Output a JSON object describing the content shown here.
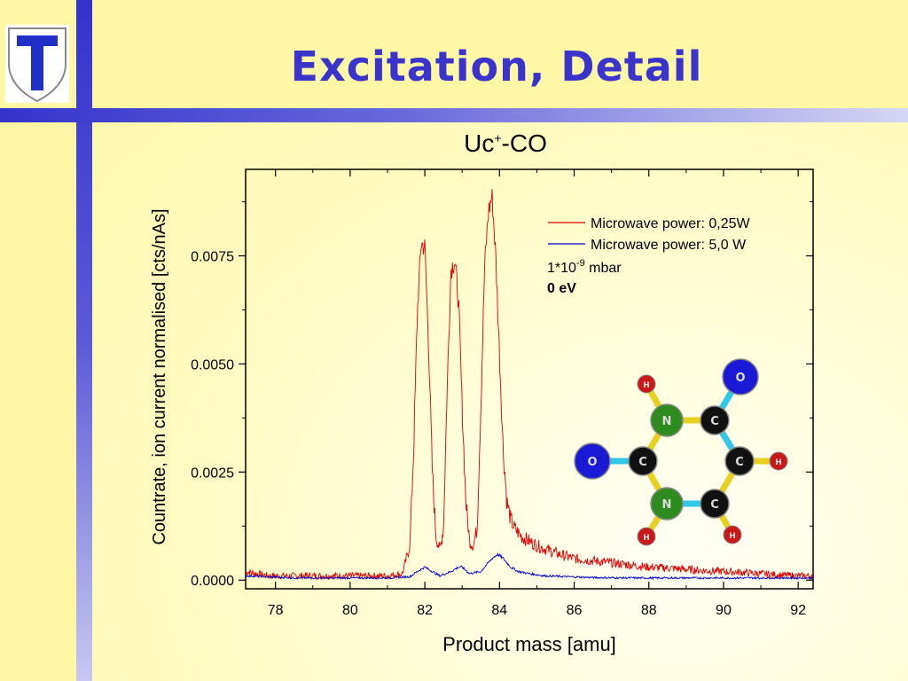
{
  "slide": {
    "title": "Excitation, Detail"
  },
  "chart_data": {
    "type": "line",
    "title": {
      "base": "Uc",
      "sup": "+",
      "rest": "-CO"
    },
    "xlabel": "Product mass [amu]",
    "ylabel": "Countrate, ion current normalised [cts/nAs]",
    "xlim": [
      77.2,
      92.4
    ],
    "ylim": [
      -0.0002,
      0.0095
    ],
    "xticks": [
      78,
      80,
      82,
      84,
      86,
      88,
      90,
      92
    ],
    "yticks": [
      0.0,
      0.0025,
      0.005,
      0.0075
    ],
    "ytick_labels": [
      "0.0000",
      "0.0025",
      "0.0050",
      "0.0075"
    ],
    "grid": false,
    "legend_position": "top-right",
    "series": [
      {
        "name": "Microwave power: 0,25W",
        "color": "#e00000",
        "x": [
          77.2,
          77.8,
          78.5,
          79.5,
          80.5,
          81.0,
          81.4,
          81.6,
          81.7,
          81.8,
          81.9,
          82.0,
          82.1,
          82.2,
          82.3,
          82.4,
          82.5,
          82.6,
          82.7,
          82.8,
          82.9,
          83.0,
          83.1,
          83.2,
          83.3,
          83.4,
          83.5,
          83.6,
          83.7,
          83.8,
          83.9,
          84.0,
          84.1,
          84.2,
          84.3,
          84.4,
          84.6,
          84.8,
          85.0,
          85.3,
          85.6,
          86.0,
          86.5,
          87.0,
          87.5,
          88.0,
          88.5,
          89.0,
          89.5,
          90.0,
          90.5,
          91.0,
          91.5,
          92.0,
          92.4
        ],
        "y": [
          0.0002,
          0.0001,
          0.0001,
          0.0001,
          0.0001,
          0.0001,
          0.00015,
          0.0008,
          0.003,
          0.0062,
          0.0078,
          0.0077,
          0.0055,
          0.0025,
          0.001,
          0.0007,
          0.0012,
          0.0045,
          0.0072,
          0.0074,
          0.0065,
          0.004,
          0.0018,
          0.0009,
          0.0008,
          0.0012,
          0.004,
          0.0072,
          0.0085,
          0.0089,
          0.0075,
          0.0052,
          0.003,
          0.0018,
          0.0014,
          0.0012,
          0.001,
          0.0009,
          0.0008,
          0.0007,
          0.0006,
          0.0005,
          0.00045,
          0.0004,
          0.00035,
          0.0003,
          0.00028,
          0.00025,
          0.00022,
          0.0002,
          0.00018,
          0.00015,
          0.00012,
          0.0001,
          0.0001
        ]
      },
      {
        "name": "Microwave power: 5,0 W",
        "color": "#0000d0",
        "x": [
          77.2,
          78.5,
          80.0,
          81.0,
          81.6,
          81.8,
          82.0,
          82.2,
          82.4,
          82.7,
          82.9,
          83.0,
          83.2,
          83.5,
          83.8,
          83.95,
          84.1,
          84.3,
          84.5,
          84.8,
          85.2,
          85.8,
          86.5,
          87.5,
          88.5,
          90.0,
          91.0,
          92.4
        ],
        "y": [
          0.0001,
          5e-05,
          5e-05,
          5e-05,
          8e-05,
          0.0002,
          0.0003,
          0.0002,
          0.0001,
          0.0002,
          0.0003,
          0.0003,
          0.00015,
          0.0002,
          0.0005,
          0.0006,
          0.0005,
          0.0003,
          0.0002,
          0.00015,
          0.0001,
          8e-05,
          6e-05,
          5e-05,
          5e-05,
          5e-05,
          5e-05,
          5e-05
        ]
      }
    ],
    "annotations": {
      "pressure": {
        "base": "1*10",
        "sup": "-9",
        "unit": " mbar"
      },
      "energy": "0 eV"
    },
    "molecule_atoms": [
      {
        "label": "N",
        "color": "#2e8b1e"
      },
      {
        "label": "C",
        "color": "#111111"
      },
      {
        "label": "O",
        "color": "#1a1ad6"
      },
      {
        "label": "H",
        "color": "#c81818"
      }
    ]
  }
}
